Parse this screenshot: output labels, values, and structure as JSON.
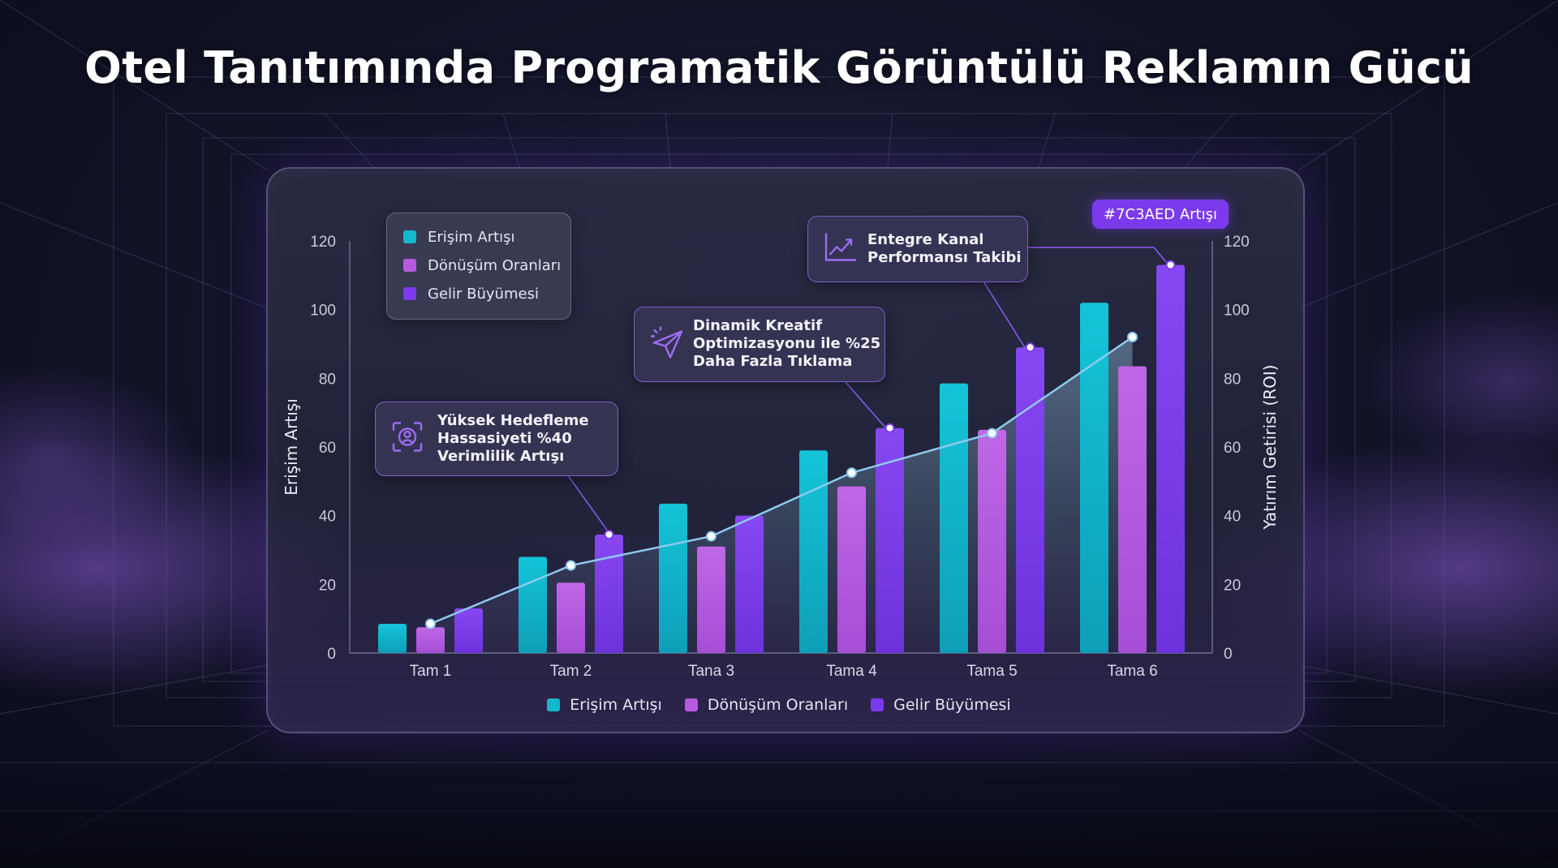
{
  "title": "Otel Tanıtımında Programatik Görüntülü Reklamın Gücü",
  "colors": {
    "reach": "#12b8cc",
    "conversion": "#b65be0",
    "revenue": "#7c3aed",
    "roi_line": "#8ec9ee",
    "accent": "#7c3aed"
  },
  "legend": {
    "items": [
      "Erişim Artışı",
      "Dönüşüm Oranları",
      "Gelir Büyümesi"
    ]
  },
  "callouts": {
    "targeting": {
      "text": "Yüksek Hedefleme\nHassasiyeti %40\nVerimlilik Artışı",
      "icon": "target-face-icon"
    },
    "creative": {
      "text": "Dinamik Kreatif\nOptimizasyonu ile %25\nDaha Fazla Tıklama",
      "icon": "cursor-click-icon"
    },
    "channel": {
      "text": "Entegre Kanal\nPerformansı Takibi",
      "icon": "trend-line-icon"
    },
    "tag": "#7C3AED Artışı"
  },
  "chart_data": {
    "type": "bar",
    "categories": [
      "Tam 1",
      "Tam 2",
      "Tana 3",
      "Tama 4",
      "Tama 5",
      "Tama 6"
    ],
    "series": [
      {
        "name": "Erişim Artışı",
        "values": [
          8.5,
          28,
          43.5,
          59,
          78.5,
          102
        ]
      },
      {
        "name": "Dönüşüm Oranları",
        "values": [
          7.5,
          20.5,
          31,
          48.5,
          65,
          83.5
        ]
      },
      {
        "name": "Gelir Büyümesi",
        "values": [
          13,
          34.5,
          40,
          65.5,
          89,
          113
        ]
      }
    ],
    "line": {
      "axis": "right",
      "values": [
        8.5,
        25.5,
        34,
        52.5,
        64,
        92
      ]
    },
    "ylabel": "Erişim Artışı",
    "y2label": "Yatırım Getirisi (ROI)",
    "ylim": [
      0,
      120
    ],
    "y2lim": [
      0,
      120
    ],
    "yticks": [
      0,
      20,
      40,
      60,
      80,
      100,
      120
    ],
    "grid": false,
    "legend": "top-left and bottom"
  }
}
